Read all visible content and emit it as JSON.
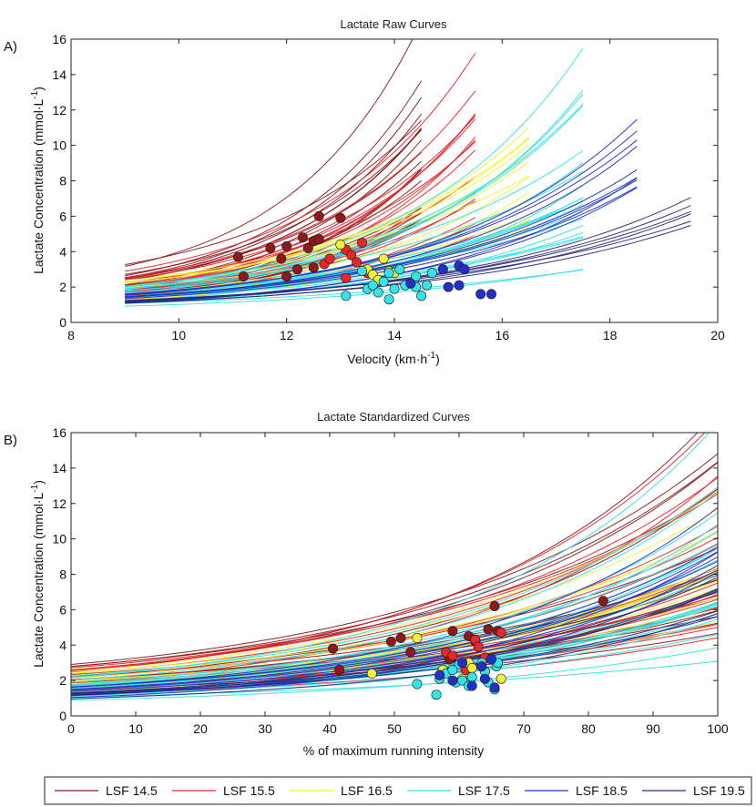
{
  "figure": {
    "legend": [
      {
        "label": "LSF 14.5",
        "color": "#8b1a1a"
      },
      {
        "label": "LSF 15.5",
        "color": "#e8262b"
      },
      {
        "label": "LSF 16.5",
        "color": "#f3f03a"
      },
      {
        "label": "LSF 17.5",
        "color": "#35e3e8"
      },
      {
        "label": "LSF 18.5",
        "color": "#2230c8"
      },
      {
        "label": "LSF 19.5",
        "color": "#2a2a7a"
      }
    ]
  },
  "chart_data": [
    {
      "type": "line",
      "panel_label": "A)",
      "title": "Lactate Raw Curves",
      "xlabel": "Velocity (km·h",
      "xlabel_sup": "-1",
      "xlabel_end": ")",
      "ylabel": "Lactate Concentration (mmol·L",
      "ylabel_sup": "-1",
      "ylabel_end": ")",
      "xlim": [
        8,
        20
      ],
      "ylim": [
        0,
        16
      ],
      "xticks": [
        8,
        10,
        12,
        14,
        16,
        18,
        20
      ],
      "yticks": [
        0,
        2,
        4,
        6,
        8,
        10,
        12,
        14,
        16
      ],
      "grid": false,
      "series": [
        {
          "name": "LSF 14.5",
          "color": "#8b1a1a",
          "x_start": 9,
          "x_end": 14.5,
          "curve_end_values": [
            15.2,
            13.6,
            12.2,
            10.9,
            9.8,
            8.9,
            8.0,
            7.2,
            6.3,
            5.5
          ],
          "curve_start_values": [
            2.9,
            2.7,
            2.5,
            2.3,
            2.1,
            2.0,
            1.8,
            1.7,
            1.6,
            1.5
          ],
          "points": [
            [
              11.1,
              3.7
            ],
            [
              11.2,
              2.6
            ],
            [
              11.7,
              4.2
            ],
            [
              11.9,
              3.6
            ],
            [
              12.0,
              4.3
            ],
            [
              12.2,
              3.0
            ],
            [
              12.3,
              4.8
            ],
            [
              12.4,
              4.2
            ],
            [
              12.5,
              4.6
            ],
            [
              12.6,
              6.0
            ],
            [
              12.6,
              4.7
            ],
            [
              13.0,
              5.9
            ],
            [
              12.5,
              3.1
            ],
            [
              12.0,
              2.6
            ]
          ]
        },
        {
          "name": "LSF 15.5",
          "color": "#e8262b",
          "x_start": 9,
          "x_end": 15.5,
          "curve_end_values": [
            14.6,
            13.2,
            11.8,
            10.6,
            9.4,
            8.2,
            7.2,
            6.2,
            5.4
          ],
          "curve_start_values": [
            2.6,
            2.4,
            2.2,
            2.0,
            1.9,
            1.8,
            1.6,
            1.5,
            1.4
          ],
          "points": [
            [
              12.7,
              3.3
            ],
            [
              12.8,
              3.6
            ],
            [
              13.1,
              4.1
            ],
            [
              13.2,
              3.8
            ],
            [
              13.3,
              3.4
            ],
            [
              13.4,
              4.5
            ],
            [
              13.1,
              2.5
            ],
            [
              13.5,
              2.8
            ]
          ]
        },
        {
          "name": "LSF 16.5",
          "color": "#f3f03a",
          "x_start": 9,
          "x_end": 16.5,
          "curve_end_values": [
            11.2,
            10.3,
            9.4,
            8.6,
            7.8,
            7.1,
            6.4,
            5.8
          ],
          "curve_start_values": [
            2.3,
            2.1,
            2.0,
            1.8,
            1.7,
            1.6,
            1.5,
            1.4
          ],
          "points": [
            [
              13.0,
              4.4
            ],
            [
              13.5,
              3.0
            ],
            [
              13.6,
              2.7
            ],
            [
              13.8,
              3.6
            ],
            [
              13.9,
              2.9
            ],
            [
              13.7,
              2.4
            ],
            [
              14.0,
              2.8
            ]
          ]
        },
        {
          "name": "LSF 17.5",
          "color": "#35e3e8",
          "x_start": 9,
          "x_end": 17.5,
          "curve_end_values": [
            14.8,
            12.6,
            11.9,
            9.5,
            8.6,
            7.8,
            7.0,
            6.4,
            5.8,
            5.2,
            3.5
          ],
          "curve_start_values": [
            2.0,
            1.9,
            1.8,
            1.7,
            1.6,
            1.5,
            1.4,
            1.3,
            1.2,
            1.1,
            1.0
          ],
          "points": [
            [
              13.1,
              1.5
            ],
            [
              13.4,
              2.9
            ],
            [
              13.5,
              1.9
            ],
            [
              13.6,
              2.1
            ],
            [
              13.7,
              1.7
            ],
            [
              13.8,
              2.3
            ],
            [
              13.9,
              1.3
            ],
            [
              13.9,
              2.8
            ],
            [
              14.0,
              1.9
            ],
            [
              14.1,
              3.0
            ],
            [
              14.2,
              2.1
            ],
            [
              14.4,
              2.6
            ],
            [
              14.5,
              1.5
            ],
            [
              14.6,
              2.1
            ],
            [
              14.7,
              2.8
            ],
            [
              14.4,
              2.0
            ]
          ]
        },
        {
          "name": "LSF 18.5",
          "color": "#2230c8",
          "x_start": 9,
          "x_end": 18.5,
          "curve_end_values": [
            10.4,
            9.7,
            9.0,
            8.6,
            7.3
          ],
          "curve_start_values": [
            1.6,
            1.5,
            1.4,
            1.3,
            1.2
          ],
          "points": [
            [
              14.3,
              2.2
            ],
            [
              14.9,
              3.0
            ],
            [
              15.0,
              2.0
            ],
            [
              15.2,
              2.1
            ],
            [
              15.2,
              3.2
            ],
            [
              15.3,
              3.0
            ],
            [
              15.6,
              1.6
            ],
            [
              15.8,
              1.6
            ]
          ]
        },
        {
          "name": "LSF 19.5",
          "color": "#2a2a7a",
          "x_start": 9,
          "x_end": 19.5,
          "curve_end_values": [
            7.0,
            6.6,
            5.4
          ],
          "curve_start_values": [
            1.3,
            1.2,
            1.1
          ],
          "points": []
        }
      ]
    },
    {
      "type": "line",
      "panel_label": "B)",
      "title": "Lactate Standardized Curves",
      "xlabel": "% of maximum running intensity",
      "ylabel": "Lactate Concentration (mmol·L",
      "ylabel_sup": "-1",
      "ylabel_end": ")",
      "xlim": [
        0,
        100
      ],
      "ylim": [
        0,
        16
      ],
      "xticks": [
        0,
        10,
        20,
        30,
        40,
        50,
        60,
        70,
        80,
        90,
        100
      ],
      "yticks": [
        0,
        2,
        4,
        6,
        8,
        10,
        12,
        14,
        16
      ],
      "grid": false,
      "series": [
        {
          "name": "LSF 14.5",
          "color": "#8b1a1a",
          "points": [
            [
              40.5,
              3.8
            ],
            [
              41.5,
              2.6
            ],
            [
              49.5,
              4.2
            ],
            [
              51.0,
              4.4
            ],
            [
              52.5,
              3.6
            ],
            [
              59.0,
              4.8
            ],
            [
              61.5,
              4.5
            ],
            [
              62.5,
              4.2
            ],
            [
              64.5,
              4.9
            ],
            [
              65.5,
              6.2
            ],
            [
              66.0,
              4.8
            ],
            [
              82.3,
              6.5
            ],
            [
              58.5,
              3.2
            ]
          ]
        },
        {
          "name": "LSF 15.5",
          "color": "#e8262b",
          "points": [
            [
              58.0,
              3.6
            ],
            [
              59.0,
              3.4
            ],
            [
              62.5,
              4.3
            ],
            [
              63.0,
              3.9
            ],
            [
              64.0,
              3.3
            ],
            [
              66.5,
              4.7
            ],
            [
              61.0,
              2.6
            ],
            [
              63.5,
              2.8
            ]
          ]
        },
        {
          "name": "LSF 16.5",
          "color": "#f3f03a",
          "points": [
            [
              46.5,
              2.4
            ],
            [
              53.5,
              4.4
            ],
            [
              57.5,
              2.6
            ],
            [
              60.5,
              2.1
            ],
            [
              61.5,
              3.0
            ],
            [
              62.0,
              2.7
            ],
            [
              66.5,
              2.1
            ]
          ]
        },
        {
          "name": "LSF 17.5",
          "color": "#35e3e8",
          "points": [
            [
              53.5,
              1.8
            ],
            [
              56.5,
              1.2
            ],
            [
              57.0,
              2.1
            ],
            [
              58.0,
              2.4
            ],
            [
              59.5,
              1.9
            ],
            [
              60.0,
              2.9
            ],
            [
              60.5,
              2.0
            ],
            [
              62.0,
              2.2
            ],
            [
              63.5,
              3.0
            ],
            [
              64.0,
              2.5
            ],
            [
              65.5,
              1.5
            ],
            [
              65.8,
              2.8
            ],
            [
              64.5,
              1.9
            ],
            [
              61.5,
              1.7
            ],
            [
              59.0,
              2.6
            ],
            [
              66.0,
              3.0
            ]
          ]
        },
        {
          "name": "LSF 18.5",
          "color": "#2230c8",
          "points": [
            [
              57.0,
              2.3
            ],
            [
              59.0,
              2.0
            ],
            [
              60.5,
              3.0
            ],
            [
              62.0,
              1.7
            ],
            [
              63.5,
              2.8
            ],
            [
              64.0,
              2.1
            ],
            [
              65.0,
              3.2
            ],
            [
              65.5,
              1.6
            ]
          ]
        },
        {
          "name": "LSF 19.5",
          "color": "#2a2a7a",
          "points": []
        }
      ]
    }
  ]
}
